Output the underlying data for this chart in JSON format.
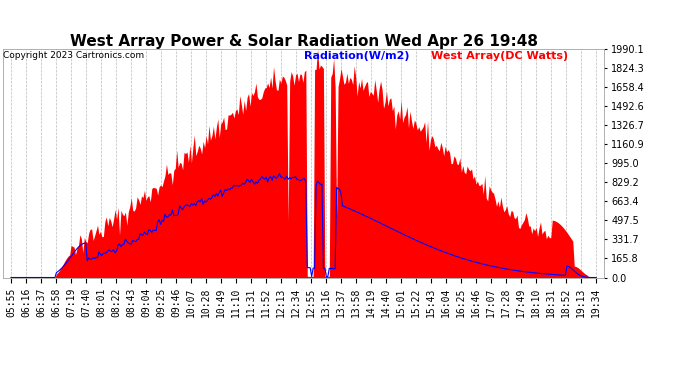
{
  "title": "West Array Power & Solar Radiation Wed Apr 26 19:48",
  "copyright": "Copyright 2023 Cartronics.com",
  "legend_radiation": "Radiation(W/m2)",
  "legend_west": "West Array(DC Watts)",
  "legend_radiation_color": "blue",
  "legend_west_color": "red",
  "ymax": 1990.1,
  "yticks": [
    0.0,
    165.8,
    331.7,
    497.5,
    663.4,
    829.2,
    995.0,
    1160.9,
    1326.7,
    1492.6,
    1658.4,
    1824.3,
    1990.1
  ],
  "ytick_labels": [
    "0.0",
    "165.8",
    "331.7",
    "497.5",
    "663.4",
    "829.2",
    "995.0",
    "1160.9",
    "1326.7",
    "1492.6",
    "1658.4",
    "1824.3",
    "1990.1"
  ],
  "background_color": "#ffffff",
  "plot_bg_color": "#ffffff",
  "grid_color": "#bbbbbb",
  "fill_color": "#ff0000",
  "line_color": "#0000ff",
  "title_fontsize": 11,
  "tick_fontsize": 7,
  "copyright_fontsize": 6.5,
  "legend_fontsize": 8
}
